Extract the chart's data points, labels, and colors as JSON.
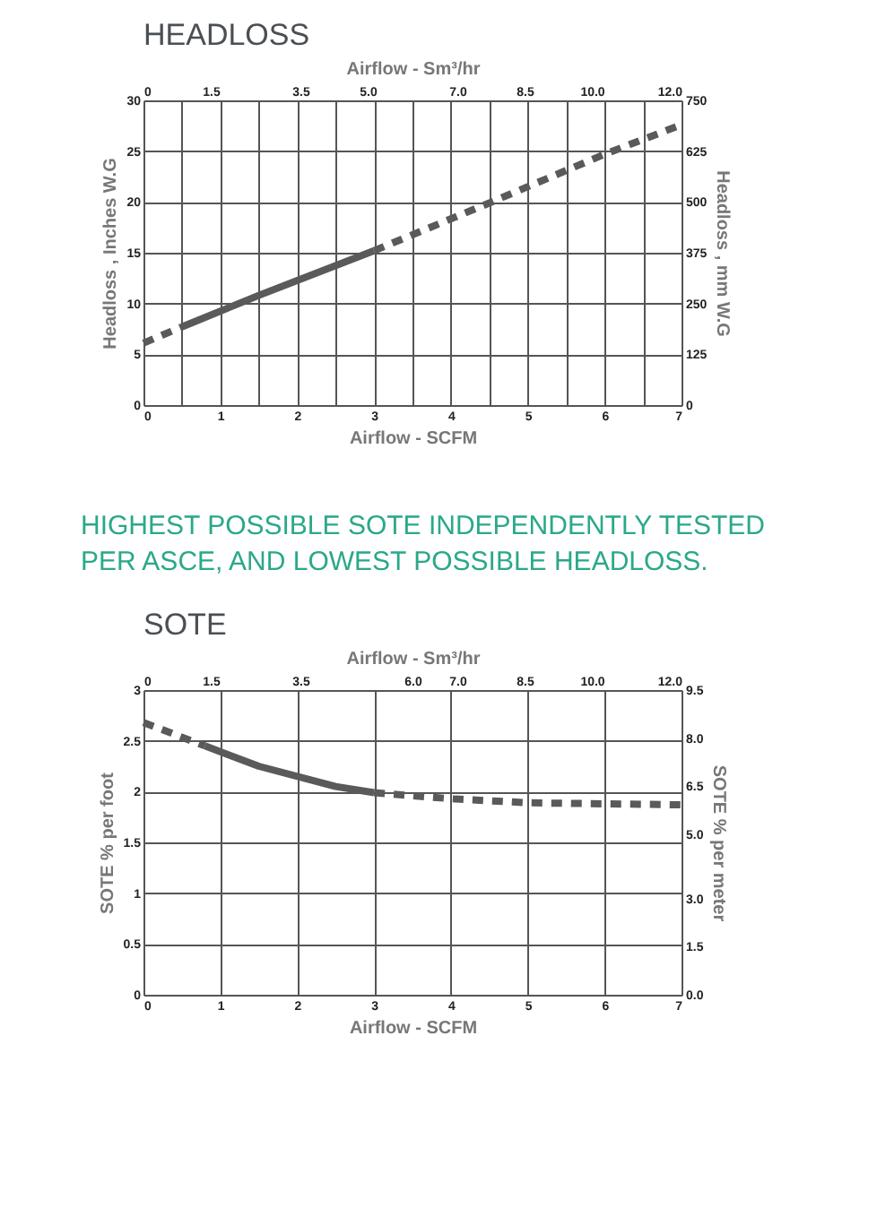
{
  "chart_data": [
    {
      "type": "line",
      "title": "HEADLOSS",
      "xlabel": "Airflow - SCFM",
      "ylabel": "Headloss , Inches W.G",
      "y2label": "Headloss , mm W.G",
      "x2label": "Airflow - Sm³/hr",
      "xlim": [
        0,
        7
      ],
      "xticks": [
        0,
        {
          "value": 0.5,
          "label": null
        },
        1,
        {
          "value": 1.5,
          "label": null
        },
        2,
        {
          "value": 2.5,
          "label": null
        },
        3,
        {
          "value": 3.5,
          "label": null
        },
        4,
        {
          "value": 4.5,
          "label": null
        },
        5,
        {
          "value": 5.5,
          "label": null
        },
        6,
        {
          "value": 6.5,
          "label": null
        },
        7
      ],
      "ylim": [
        0,
        30
      ],
      "yticks": [
        0,
        5,
        10,
        15,
        20,
        25,
        30
      ],
      "y2lim": [
        0,
        750
      ],
      "y2ticks": [
        0,
        125,
        250,
        375,
        500,
        625,
        750
      ],
      "x2lim": [
        0,
        12.0
      ],
      "x2ticks": [
        0,
        {
          "value": 1.5,
          "label": "1.5"
        },
        {
          "value": 3.5,
          "label": "3.5"
        },
        {
          "value": 5.0,
          "label": "5.0"
        },
        {
          "value": 7.0,
          "label": "7.0"
        },
        {
          "value": 8.5,
          "label": "8.5"
        },
        {
          "value": 10.0,
          "label": "10.0"
        },
        {
          "value": 12.0,
          "label": "12.0"
        }
      ],
      "grid": true,
      "series": [
        {
          "color": "#5a5a5a",
          "line_style": "dashed",
          "x": [
            0,
            0.5
          ],
          "values": [
            6.1,
            7.7
          ]
        },
        {
          "color": "#5a5a5a",
          "line_style": "solid",
          "x": [
            0.5,
            1.5,
            3
          ],
          "values": [
            7.7,
            10.8,
            15.2
          ]
        },
        {
          "color": "#5a5a5a",
          "line_style": "dashed",
          "x": [
            3,
            4.5,
            6,
            7
          ],
          "values": [
            15.2,
            19.9,
            24.7,
            27.6
          ]
        }
      ],
      "annotations": [
        "HIGHEST POSSIBLE SOTE INDEPENDENTLY TESTED PER ASCE, AND LOWEST POSSIBLE HEADLOSS."
      ]
    },
    {
      "type": "line",
      "title": "SOTE",
      "xlabel": "Airflow - SCFM",
      "ylabel": "SOTE % per foot",
      "y2label": "SOTE % per meter",
      "x2label": "Airflow - Sm³/hr",
      "xlim": [
        0,
        7
      ],
      "xticks": [
        0,
        1,
        2,
        3,
        4,
        5,
        6,
        7
      ],
      "ylim": [
        0,
        3
      ],
      "yticks": [
        0,
        0.5,
        1,
        1.5,
        2,
        2.5,
        3
      ],
      "y2lim": [
        0,
        9.5
      ],
      "y2ticks": [
        {
          "value": 0,
          "label": "0.0"
        },
        {
          "value": 1.5,
          "label": "1.5"
        },
        {
          "value": 3.0,
          "label": "3.0"
        },
        {
          "value": 5.0,
          "label": "5.0"
        },
        {
          "value": 6.5,
          "label": "6.5"
        },
        {
          "value": 8.0,
          "label": "8.0"
        },
        {
          "value": 9.5,
          "label": "9.5"
        }
      ],
      "x2lim": [
        0,
        12.0
      ],
      "x2ticks": [
        0,
        {
          "value": 1.5,
          "label": "1.5"
        },
        {
          "value": 3.5,
          "label": "3.5"
        },
        {
          "value": 6.0,
          "label": "6.0"
        },
        {
          "value": 7.0,
          "label": "7.0"
        },
        {
          "value": 8.5,
          "label": "8.5"
        },
        {
          "value": 10.0,
          "label": "10.0"
        },
        {
          "value": 12.0,
          "label": "12.0"
        }
      ],
      "grid": true,
      "series": [
        {
          "color": "#5a5a5a",
          "line_style": "dashed",
          "x": [
            0,
            0.8
          ],
          "values": [
            2.68,
            2.45
          ]
        },
        {
          "color": "#5a5a5a",
          "line_style": "solid",
          "x": [
            0.8,
            1.5,
            2.5,
            3
          ],
          "values": [
            2.45,
            2.25,
            2.05,
            1.99
          ]
        },
        {
          "color": "#5a5a5a",
          "line_style": "dashed",
          "x": [
            3,
            4,
            5,
            6,
            7
          ],
          "values": [
            1.99,
            1.93,
            1.89,
            1.88,
            1.87
          ]
        }
      ]
    }
  ]
}
